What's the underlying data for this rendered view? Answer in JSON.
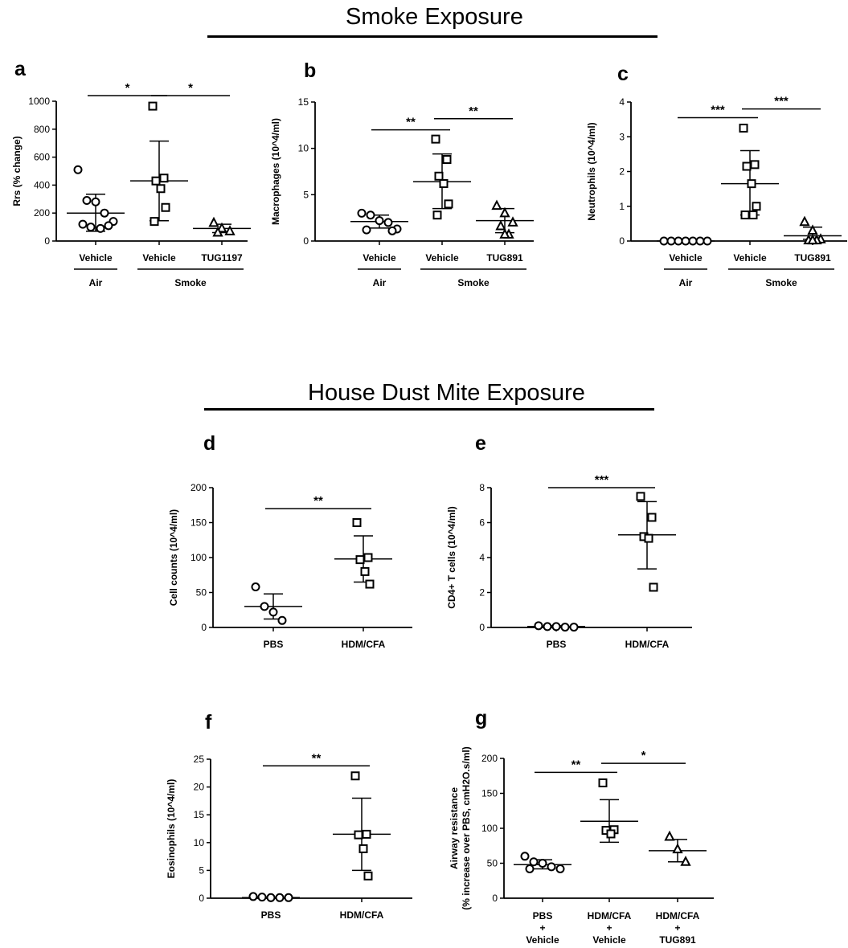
{
  "sections": {
    "smoke_title": "Smoke Exposure",
    "hdm_title": "House Dust Mite Exposure"
  },
  "chart_data": [
    {
      "id": "a",
      "panel_label": "a",
      "type": "scatter",
      "ylabel": "Rrs (% change)",
      "ylim": [
        0,
        1000
      ],
      "yticks": [
        0,
        200,
        400,
        600,
        800,
        1000
      ],
      "groups": [
        {
          "label": "Vehicle",
          "marker": "circle",
          "mean": 200,
          "sd": [
            70,
            335
          ],
          "points": [
            510,
            290,
            280,
            200,
            140,
            120,
            110,
            100,
            90
          ]
        },
        {
          "label": "Vehicle",
          "marker": "square",
          "mean": 430,
          "sd": [
            145,
            715
          ],
          "points": [
            965,
            450,
            430,
            375,
            240,
            140
          ]
        },
        {
          "label": "TUG1197",
          "marker": "triangle",
          "mean": 90,
          "sd": [
            60,
            120
          ],
          "points": [
            130,
            90,
            70,
            60
          ]
        }
      ],
      "bottom_labels": [
        {
          "text": "Air",
          "groups": [
            0
          ]
        },
        {
          "text": "Smoke",
          "groups": [
            1,
            2
          ]
        }
      ],
      "comparisons": [
        {
          "from": 0,
          "to": 1,
          "label": "*",
          "y": 1040
        },
        {
          "from": 1,
          "to": 2,
          "label": "*",
          "y": 1040
        }
      ]
    },
    {
      "id": "b",
      "panel_label": "b",
      "type": "scatter",
      "ylabel": "Macrophages (10^4/ml)",
      "ylim": [
        0,
        15
      ],
      "yticks": [
        0,
        5,
        10,
        15
      ],
      "groups": [
        {
          "label": "Vehicle",
          "marker": "circle",
          "mean": 2.1,
          "sd": [
            1.4,
            2.8
          ],
          "points": [
            3.0,
            2.8,
            2.2,
            2.0,
            1.3,
            1.2,
            1.1
          ]
        },
        {
          "label": "Vehicle",
          "marker": "square",
          "mean": 6.4,
          "sd": [
            3.5,
            9.4
          ],
          "points": [
            11.0,
            8.8,
            7.0,
            6.2,
            4.0,
            2.8
          ]
        },
        {
          "label": "TUG891",
          "marker": "triangle",
          "mean": 2.2,
          "sd": [
            0.9,
            3.5
          ],
          "points": [
            3.8,
            3.0,
            2.0,
            1.6,
            0.7,
            0.7
          ]
        }
      ],
      "bottom_labels": [
        {
          "text": "Air",
          "groups": [
            0
          ]
        },
        {
          "text": "Smoke",
          "groups": [
            1,
            2
          ]
        }
      ],
      "comparisons": [
        {
          "from": 0,
          "to": 1,
          "label": "**",
          "y": 12
        },
        {
          "from": 1,
          "to": 2,
          "label": "**",
          "y": 13.2
        }
      ]
    },
    {
      "id": "c",
      "panel_label": "c",
      "type": "scatter",
      "ylabel": "Neutrophils (10^4/ml)",
      "ylim": [
        0,
        4
      ],
      "yticks": [
        0,
        1,
        2,
        3,
        4
      ],
      "groups": [
        {
          "label": "Vehicle",
          "marker": "circle",
          "mean": 0,
          "sd": [
            0,
            0
          ],
          "points": [
            0,
            0,
            0,
            0,
            0,
            0,
            0
          ]
        },
        {
          "label": "Vehicle",
          "marker": "square",
          "mean": 1.65,
          "sd": [
            0.75,
            2.6
          ],
          "points": [
            3.25,
            2.2,
            2.15,
            1.65,
            1.0,
            0.75,
            0.75
          ]
        },
        {
          "label": "TUG891",
          "marker": "triangle",
          "mean": 0.15,
          "sd": [
            0.05,
            0.4
          ],
          "points": [
            0.55,
            0.3,
            0.05,
            0.02,
            0.02,
            0.02
          ]
        }
      ],
      "bottom_labels": [
        {
          "text": "Air",
          "groups": [
            0
          ]
        },
        {
          "text": "Smoke",
          "groups": [
            1,
            2
          ]
        }
      ],
      "comparisons": [
        {
          "from": 0,
          "to": 1,
          "label": "***",
          "y": 3.55
        },
        {
          "from": 1,
          "to": 2,
          "label": "***",
          "y": 3.8
        }
      ]
    },
    {
      "id": "d",
      "panel_label": "d",
      "type": "scatter",
      "ylabel": "Cell counts (10^4/ml)",
      "ylim": [
        0,
        200
      ],
      "yticks": [
        0,
        50,
        100,
        150,
        200
      ],
      "groups": [
        {
          "label": "PBS",
          "marker": "circle",
          "mean": 30,
          "sd": [
            12,
            48
          ],
          "points": [
            58,
            30,
            22,
            10
          ]
        },
        {
          "label": "HDM/CFA",
          "marker": "square",
          "mean": 98,
          "sd": [
            65,
            131
          ],
          "points": [
            150,
            100,
            97,
            80,
            62
          ]
        }
      ],
      "bottom_labels": [],
      "comparisons": [
        {
          "from": 0,
          "to": 1,
          "label": "**",
          "y": 170
        }
      ]
    },
    {
      "id": "e",
      "panel_label": "e",
      "type": "scatter",
      "ylabel": "CD4+ T cells (10^4/ml)",
      "ylim": [
        0,
        8
      ],
      "yticks": [
        0,
        2,
        4,
        6,
        8
      ],
      "groups": [
        {
          "label": "PBS",
          "marker": "circle",
          "mean": 0.05,
          "sd": [
            0,
            0.1
          ],
          "points": [
            0.1,
            0.05,
            0.05,
            0.02,
            0.02
          ]
        },
        {
          "label": "HDM/CFA",
          "marker": "square",
          "mean": 5.3,
          "sd": [
            3.35,
            7.2
          ],
          "points": [
            7.5,
            6.3,
            5.2,
            5.1,
            2.3
          ]
        }
      ],
      "bottom_labels": [],
      "comparisons": [
        {
          "from": 0,
          "to": 1,
          "label": "***",
          "y": 8
        }
      ]
    },
    {
      "id": "f",
      "panel_label": "f",
      "type": "scatter",
      "ylabel": "Eosinophils (10^4/ml)",
      "ylim": [
        0,
        25
      ],
      "yticks": [
        0,
        5,
        10,
        15,
        20,
        25
      ],
      "groups": [
        {
          "label": "PBS",
          "marker": "circle",
          "mean": 0.1,
          "sd": [
            0,
            0.2
          ],
          "points": [
            0.3,
            0.2,
            0.1,
            0.1,
            0.1
          ]
        },
        {
          "label": "HDM/CFA",
          "marker": "square",
          "mean": 11.5,
          "sd": [
            5.0,
            18.0
          ],
          "points": [
            22,
            11.5,
            11.4,
            8.9,
            4.0
          ]
        }
      ],
      "bottom_labels": [],
      "comparisons": [
        {
          "from": 0,
          "to": 1,
          "label": "**",
          "y": 23.8
        }
      ]
    },
    {
      "id": "g",
      "panel_label": "g",
      "type": "scatter",
      "ylabel_lines": [
        "Airway resistance",
        "(% increase over PBS, cmH2O.s/ml)"
      ],
      "ylim": [
        0,
        200
      ],
      "yticks": [
        0,
        50,
        100,
        150,
        200
      ],
      "groups": [
        {
          "label_lines": [
            "PBS",
            "+",
            "Vehicle"
          ],
          "marker": "circle",
          "mean": 48,
          "sd": [
            42,
            55
          ],
          "points": [
            60,
            52,
            50,
            45,
            42,
            42
          ]
        },
        {
          "label_lines": [
            "HDM/CFA",
            "+",
            "Vehicle"
          ],
          "marker": "square",
          "mean": 110,
          "sd": [
            80,
            141
          ],
          "points": [
            165,
            98,
            97,
            92
          ]
        },
        {
          "label_lines": [
            "HDM/CFA",
            "+",
            "TUG891"
          ],
          "marker": "triangle",
          "mean": 68,
          "sd": [
            52,
            84
          ],
          "points": [
            88,
            70,
            52
          ]
        }
      ],
      "bottom_labels": [],
      "comparisons": [
        {
          "from": 0,
          "to": 1,
          "label": "**",
          "y": 180
        },
        {
          "from": 1,
          "to": 2,
          "label": "*",
          "y": 193
        }
      ]
    }
  ]
}
